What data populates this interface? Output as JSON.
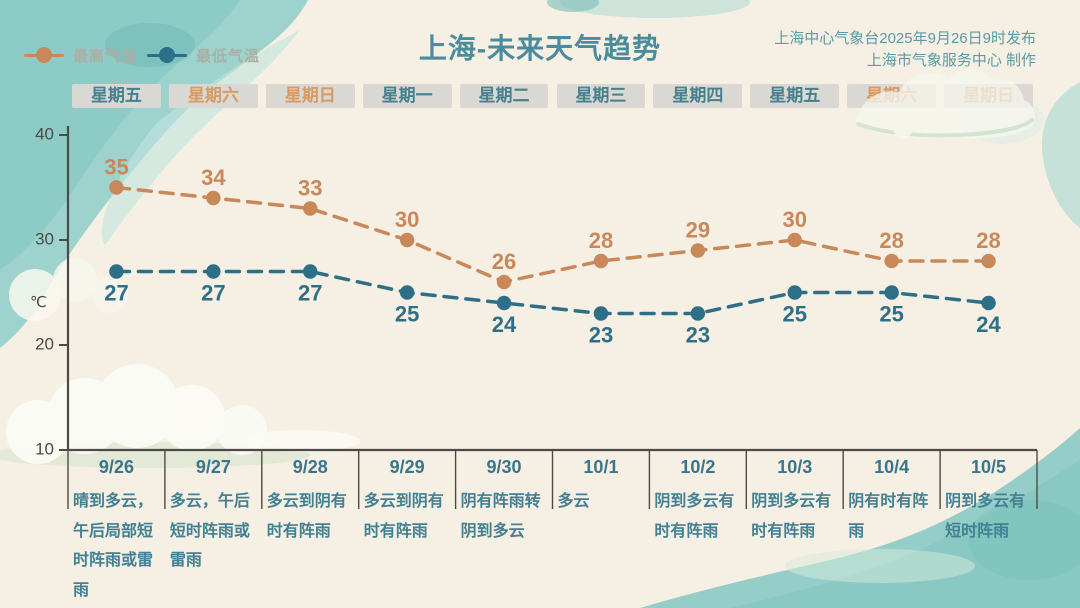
{
  "header": {
    "title": "上海-未来天气趋势",
    "issued_line1": "上海中心气象台2025年9月26日9时发布",
    "issued_line2": "上海市气象服务中心 制作"
  },
  "colors": {
    "background": "#f6efe3",
    "title": "#4a8c9e",
    "issued_text": "#5b9aa6",
    "legend_text": "#a9b0a3",
    "max_series": "#c9885a",
    "min_series": "#2e6f88",
    "weekday_text": "#47808f",
    "weekend_text": "#d89a64",
    "day_box_bg": "#dad8d2",
    "axis": "#4d4a45",
    "date_text": "#39758d",
    "desc_text": "#428094",
    "watercolor": "#8fccc6"
  },
  "chart_data": {
    "type": "line",
    "title": "上海-未来天气趋势",
    "ylabel": "℃",
    "yticks": [
      40,
      30,
      20,
      10
    ],
    "ylim": [
      10,
      40
    ],
    "x": [
      "9/26",
      "9/27",
      "9/28",
      "9/29",
      "9/30",
      "10/1",
      "10/2",
      "10/3",
      "10/4",
      "10/5"
    ],
    "weekdays": [
      {
        "label": "星期五",
        "weekend": false
      },
      {
        "label": "星期六",
        "weekend": true
      },
      {
        "label": "星期日",
        "weekend": true
      },
      {
        "label": "星期一",
        "weekend": false
      },
      {
        "label": "星期二",
        "weekend": false
      },
      {
        "label": "星期三",
        "weekend": false
      },
      {
        "label": "星期四",
        "weekend": false
      },
      {
        "label": "星期五",
        "weekend": false
      },
      {
        "label": "星期六",
        "weekend": true
      },
      {
        "label": "星期日",
        "weekend": true
      }
    ],
    "series": [
      {
        "name": "最高气温",
        "values": [
          35,
          34,
          33,
          30,
          26,
          28,
          29,
          30,
          28,
          28
        ],
        "color": "#c9885a"
      },
      {
        "name": "最低气温",
        "values": [
          27,
          27,
          27,
          25,
          24,
          23,
          23,
          25,
          25,
          24
        ],
        "color": "#2e6f88"
      }
    ],
    "descriptions": [
      "晴到多云，午后局部短时阵雨或雷雨",
      "多云，午后短时阵雨或雷雨",
      "多云到阴有时有阵雨",
      "多云到阴有时有阵雨",
      "阴有阵雨转阴到多云",
      "多云",
      "阴到多云有时有阵雨",
      "阴到多云有时有阵雨",
      "阴有时有阵雨",
      "阴到多云有短时阵雨"
    ],
    "legend_position": "top-left",
    "grid": false
  }
}
